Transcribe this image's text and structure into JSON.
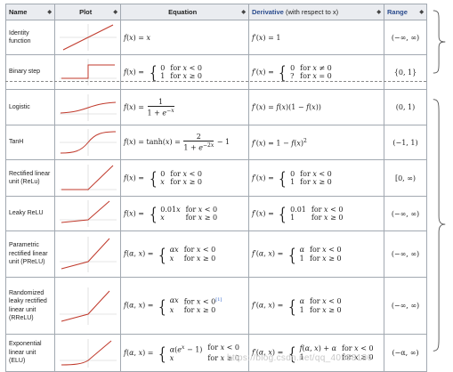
{
  "header": {
    "name": "Name",
    "plot": "Plot",
    "equation": "Equation",
    "derivative": "Derivative",
    "derivative_note": "(with respect to x)",
    "range": "Range",
    "sort_glyph": "◆"
  },
  "rows": [
    {
      "name": "Identity function",
      "range": "(−∞, ∞)"
    },
    {
      "name": "Binary step",
      "range": "{0, 1}"
    },
    {
      "name": "Logistic",
      "range": "(0, 1)"
    },
    {
      "name": "TanH",
      "range": "(−1, 1)"
    },
    {
      "name": "Rectified linear unit (ReLu)",
      "range": "[0, ∞)"
    },
    {
      "name": "Leaky ReLU",
      "range": "(−∞, ∞)"
    },
    {
      "name": "Parametric rectified linear unit (PReLU)",
      "range": "(−∞, ∞)"
    },
    {
      "name": "Randomized leaky rectified linear unit (RReLU)",
      "range": "(−∞, ∞)"
    },
    {
      "name": "Exponential linear unit (ELU)",
      "range": "(−α, ∞)"
    }
  ],
  "watermark": "https://blog.csdn.net/qq_40558136",
  "colors": {
    "header_bg": "#eaecf0",
    "border": "#a2a9b1",
    "link_blue": "#2a4b8d",
    "plot_line": "#c0392b"
  }
}
